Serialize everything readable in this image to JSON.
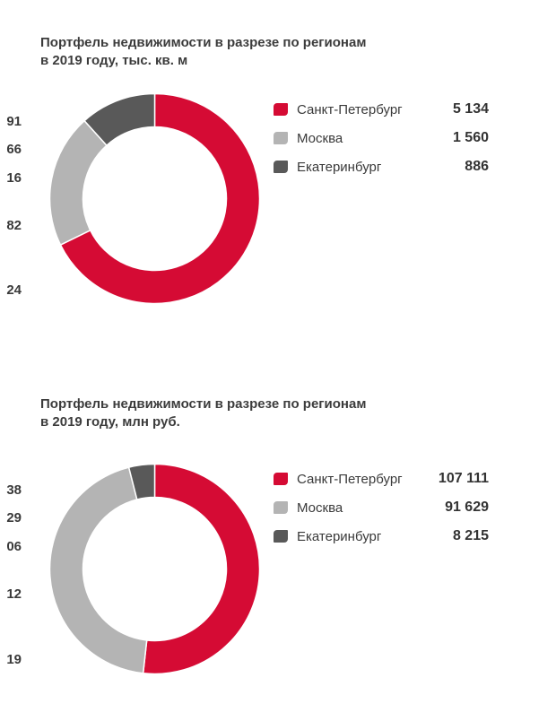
{
  "chart_data": [
    {
      "type": "pie",
      "title": "Портфель недвижимости в разрезе по регионам\nв 2019 году, тыс. кв. м",
      "categories": [
        "Санкт-Петербург",
        "Москва",
        "Екатеринбург"
      ],
      "values": [
        5134,
        1560,
        886
      ],
      "value_labels": [
        "5 134",
        "1 560",
        "886"
      ],
      "colors": [
        "#d50b34",
        "#b4b4b4",
        "#595959"
      ],
      "legend": "right",
      "partial_labels_left": [
        "91",
        "66",
        "16",
        "82",
        "24"
      ]
    },
    {
      "type": "pie",
      "title": "Портфель недвижимости в разрезе по регионам\nв 2019 году, млн руб.",
      "categories": [
        "Санкт-Петербург",
        "Москва",
        "Екатеринбург"
      ],
      "values": [
        107111,
        91629,
        8215
      ],
      "value_labels": [
        "107 111",
        "91 629",
        "8 215"
      ],
      "colors": [
        "#d50b34",
        "#b4b4b4",
        "#595959"
      ],
      "legend": "right",
      "partial_labels_left": [
        "38",
        "29",
        "06",
        "12",
        "19"
      ]
    }
  ]
}
